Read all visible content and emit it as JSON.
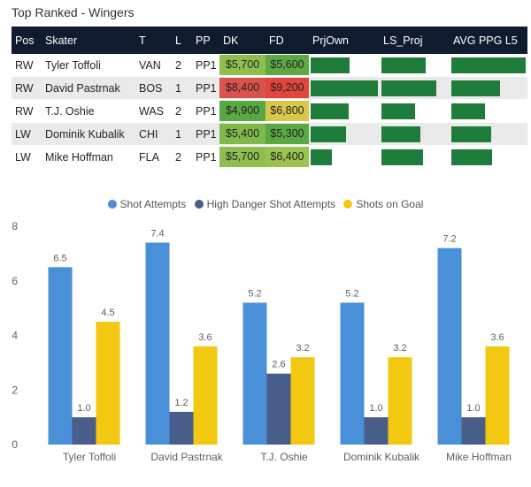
{
  "title": "Top Ranked - Wingers",
  "table": {
    "columns": [
      "Pos",
      "Skater",
      "T",
      "L",
      "PP",
      "DK",
      "FD",
      "PrjOwn",
      "LS_Proj",
      "AVG PPG L5"
    ],
    "rows": [
      {
        "pos": "RW",
        "skater": "Tyler Toffoli",
        "team": "VAN",
        "line": "2",
        "pp": "PP1",
        "dk": "$5,700",
        "fd": "$5,600",
        "dk_color": "#8fbe4e",
        "fd_color": "#5ea844",
        "prjown": 0.58,
        "ls_proj": 0.66,
        "avg_ppg_l5": 1.0
      },
      {
        "pos": "RW",
        "skater": "David Pastrnak",
        "team": "BOS",
        "line": "1",
        "pp": "PP1",
        "dk": "$8,400",
        "fd": "$9,200",
        "dk_color": "#d9534a",
        "fd_color": "#e0463d",
        "prjown": 1.0,
        "ls_proj": 0.82,
        "avg_ppg_l5": 0.66
      },
      {
        "pos": "RW",
        "skater": "T.J. Oshie",
        "team": "WAS",
        "line": "2",
        "pp": "PP1",
        "dk": "$4,900",
        "fd": "$6,800",
        "dk_color": "#5aa844",
        "fd_color": "#d8c74a",
        "prjown": 0.56,
        "ls_proj": 0.51,
        "avg_ppg_l5": 0.45
      },
      {
        "pos": "LW",
        "skater": "Dominik Kubalik",
        "team": "CHI",
        "line": "1",
        "pp": "PP1",
        "dk": "$5,400",
        "fd": "$5,300",
        "dk_color": "#7fb84b",
        "fd_color": "#5aa844",
        "prjown": 0.52,
        "ls_proj": 0.59,
        "avg_ppg_l5": 0.53
      },
      {
        "pos": "LW",
        "skater": "Mike Hoffman",
        "team": "FLA",
        "line": "2",
        "pp": "PP1",
        "dk": "$5,700",
        "fd": "$6,400",
        "dk_color": "#8fbe4e",
        "fd_color": "#9bc34f",
        "prjown": 0.31,
        "ls_proj": 0.62,
        "avg_ppg_l5": 0.55
      }
    ]
  },
  "legend": {
    "shot_attempts": "Shot Attempts",
    "high_danger": "High Danger Shot Attempts",
    "shots_on_goal": "Shots on Goal"
  },
  "colors": {
    "shot_attempts": "#4a90d9",
    "high_danger": "#4a5e8c",
    "shots_on_goal": "#f2c811",
    "bar": "#1e7d3a",
    "header": "#0f1c2e"
  },
  "chart_data": {
    "type": "bar",
    "categories": [
      "Tyler Toffoli",
      "David Pastrnak",
      "T.J. Oshie",
      "Dominik Kubalik",
      "Mike Hoffman"
    ],
    "series": [
      {
        "name": "Shot Attempts",
        "values": [
          6.5,
          7.4,
          5.2,
          5.2,
          7.2
        ]
      },
      {
        "name": "High Danger Shot Attempts",
        "values": [
          1.0,
          1.2,
          2.6,
          1.0,
          1.0
        ]
      },
      {
        "name": "Shots on Goal",
        "values": [
          4.5,
          3.6,
          3.2,
          3.2,
          3.6
        ]
      }
    ],
    "yticks": [
      0,
      2,
      4,
      6,
      8
    ],
    "ylim": [
      0,
      8
    ],
    "title": "",
    "xlabel": "",
    "ylabel": "",
    "legend_position": "top-center"
  }
}
